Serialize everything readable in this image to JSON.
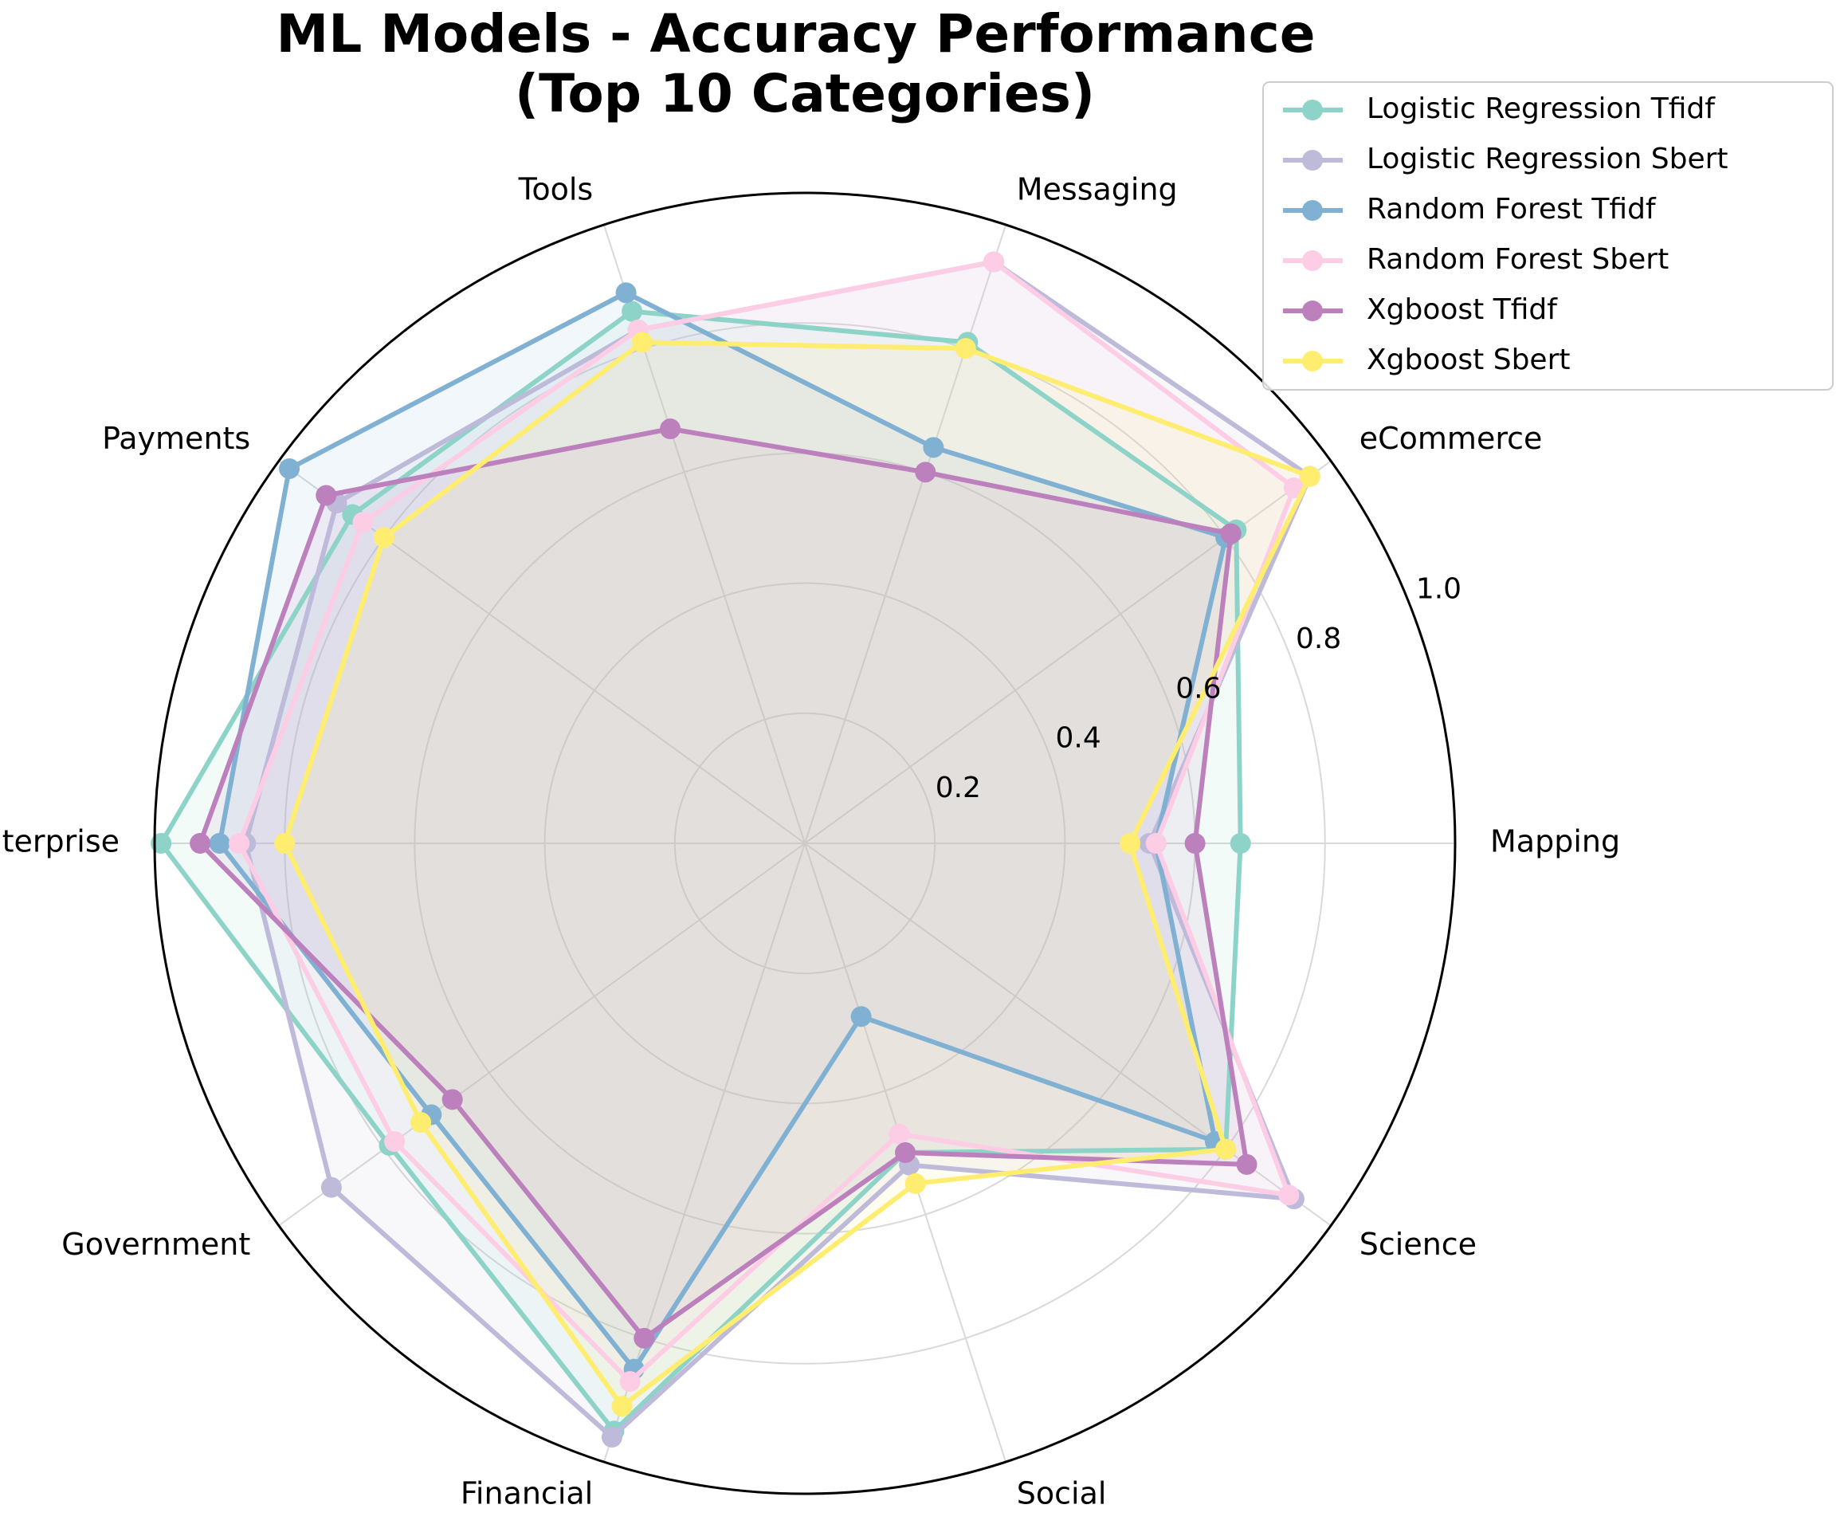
{
  "chart_data": {
    "type": "radar",
    "title": "ML Models - Accuracy Performance\n(Top 10 Categories)",
    "categories": [
      "Mapping",
      "eCommerce",
      "Messaging",
      "Tools",
      "Payments",
      "Enterprise",
      "Government",
      "Financial",
      "Social",
      "Science"
    ],
    "rlim": [
      0,
      1.0
    ],
    "rticks": [
      0.2,
      0.4,
      0.6,
      0.8,
      1.0
    ],
    "rtick_labels": [
      "0.2",
      "0.4",
      "0.6",
      "0.8",
      "1.0"
    ],
    "grid": true,
    "legend_position": "top-right",
    "series": [
      {
        "name": "Logistic Regression Tfidf",
        "color": "#8dd3c7",
        "values": [
          0.67,
          0.82,
          0.81,
          0.86,
          0.86,
          0.99,
          0.79,
          0.95,
          0.5,
          0.8
        ]
      },
      {
        "name": "Logistic Regression Sbert",
        "color": "#bebada",
        "values": [
          0.53,
          0.96,
          0.94,
          0.83,
          0.89,
          0.86,
          0.9,
          0.96,
          0.52,
          0.93
        ]
      },
      {
        "name": "Random Forest Tfidf",
        "color": "#80b1d3",
        "values": [
          0.54,
          0.8,
          0.64,
          0.89,
          0.98,
          0.9,
          0.71,
          0.85,
          0.28,
          0.78
        ]
      },
      {
        "name": "Random Forest Sbert",
        "color": "#fccde5",
        "values": [
          0.54,
          0.93,
          0.94,
          0.83,
          0.84,
          0.87,
          0.78,
          0.87,
          0.47,
          0.92
        ]
      },
      {
        "name": "Xgboost Tfidf",
        "color": "#bc80bd",
        "values": [
          0.6,
          0.81,
          0.6,
          0.67,
          0.91,
          0.93,
          0.67,
          0.8,
          0.5,
          0.84
        ]
      },
      {
        "name": "Xgboost Sbert",
        "color": "#ffed6f",
        "values": [
          0.5,
          0.96,
          0.8,
          0.81,
          0.8,
          0.8,
          0.73,
          0.91,
          0.55,
          0.8
        ]
      }
    ]
  }
}
